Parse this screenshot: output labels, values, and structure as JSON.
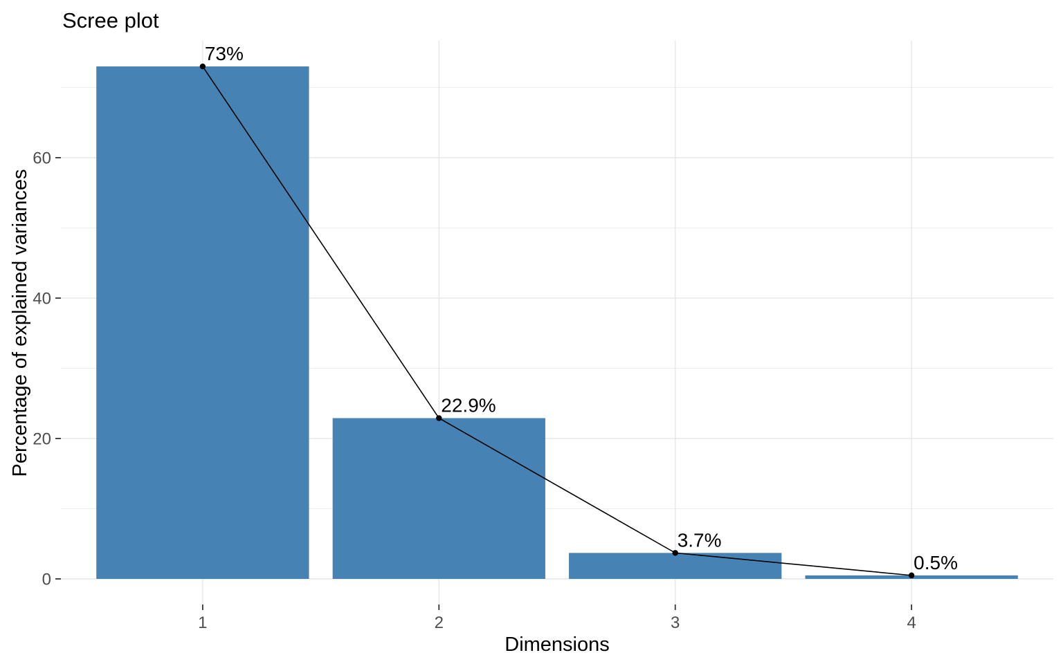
{
  "chart_data": {
    "type": "bar",
    "overlay": "line+points",
    "title": "Scree plot",
    "xlabel": "Dimensions",
    "ylabel": "Percentage of explained variances",
    "categories": [
      "1",
      "2",
      "3",
      "4"
    ],
    "values": [
      73,
      22.9,
      3.7,
      0.5
    ],
    "point_labels": [
      "73%",
      "22.9%",
      "3.7%",
      "0.5%"
    ],
    "yticks": [
      0,
      20,
      40,
      60
    ],
    "yminor_ticks": [
      10,
      30,
      50,
      70
    ],
    "ylim": [
      -3.65,
      76.65
    ],
    "bar_width_ratio": 0.9,
    "grid": true,
    "legend": "none",
    "colors": {
      "bar_fill": "#4682B4",
      "line": "#000000",
      "point": "#000000",
      "data_label": "#000000",
      "grid_major": "#E4E4E4",
      "grid_minor": "#EFEFEF",
      "axis_tick": "#333333",
      "tick_label": "#4D4D4D",
      "title_text": "#000000",
      "panel_background": "#FFFFFF"
    }
  }
}
